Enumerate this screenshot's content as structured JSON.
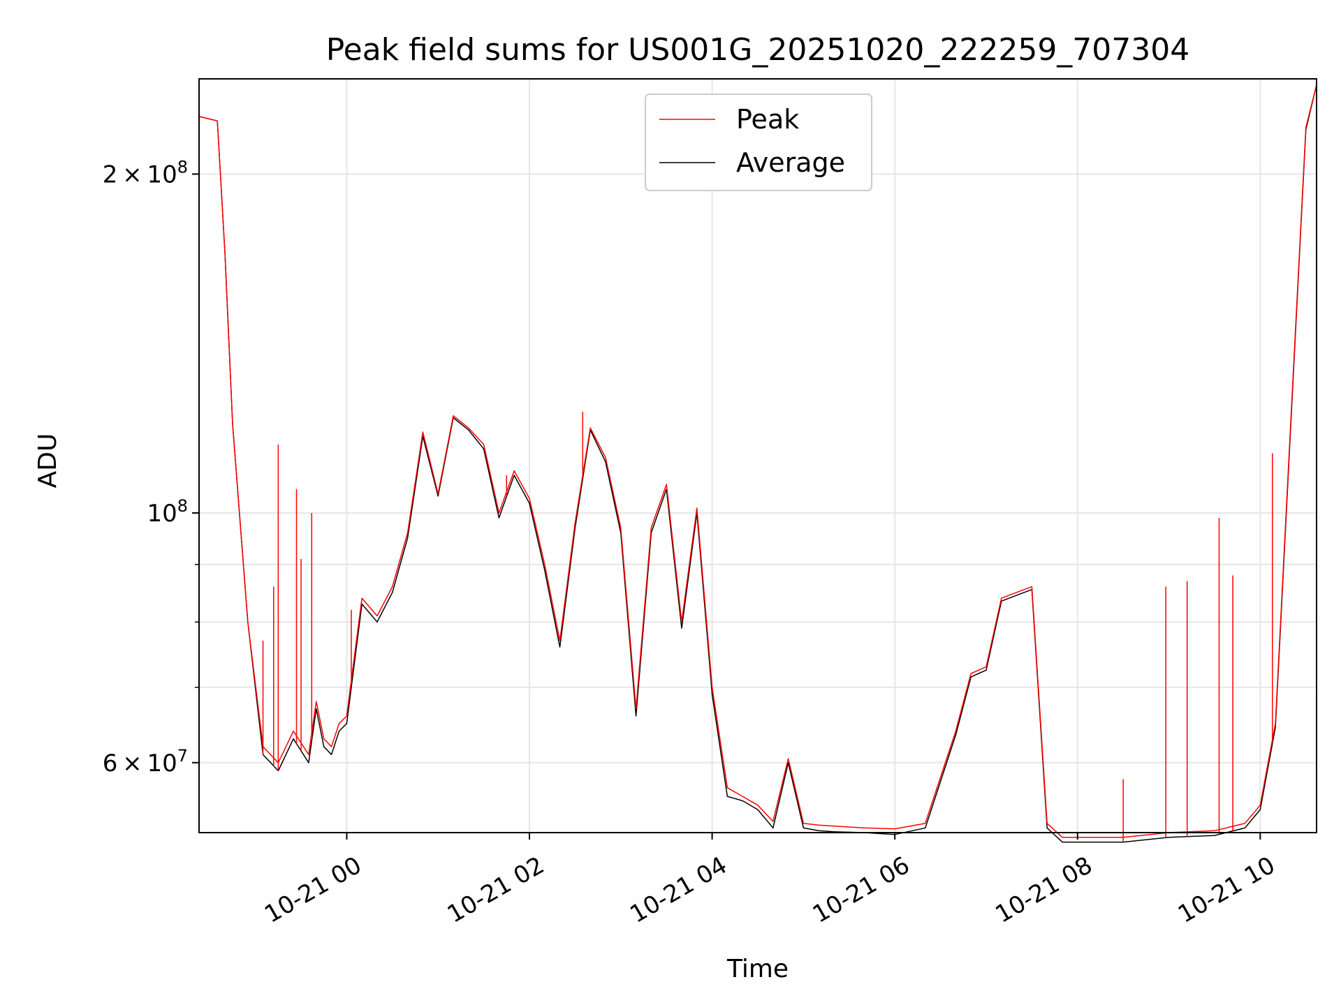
{
  "chart_data": {
    "type": "line",
    "title": "Peak field sums for US001G_20251020_222259_707304",
    "xlabel": "Time",
    "ylabel": "ADU",
    "yscale": "log",
    "xlim": [
      "2025-10-20 22:23",
      "2025-10-21 10:37"
    ],
    "ylim": [
      52000000,
      243000000
    ],
    "grid": true,
    "legend_position": "upper center",
    "x_ticks": [
      "2025-10-21 00:00",
      "2025-10-21 02:00",
      "2025-10-21 04:00",
      "2025-10-21 06:00",
      "2025-10-21 08:00",
      "2025-10-21 10:00"
    ],
    "x_tick_labels": [
      "10-21 00",
      "10-21 02",
      "10-21 04",
      "10-21 06",
      "10-21 08",
      "10-21 10"
    ],
    "y_ticks": [
      {
        "value": 60000000,
        "base": "6",
        "exp": "7",
        "kind": "times"
      },
      {
        "value": 100000000,
        "base": "10",
        "exp": "8",
        "kind": "power"
      },
      {
        "value": 200000000,
        "base": "2",
        "exp": "8",
        "kind": "times"
      }
    ],
    "y_minor_ticks": [
      70000000,
      80000000,
      90000000
    ],
    "x": [
      "2025-10-20 22:23",
      "2025-10-20 22:35",
      "2025-10-20 22:40",
      "2025-10-20 22:45",
      "2025-10-20 22:55",
      "2025-10-20 23:05",
      "2025-10-20 23:15",
      "2025-10-20 23:25",
      "2025-10-20 23:35",
      "2025-10-20 23:40",
      "2025-10-20 23:45",
      "2025-10-20 23:50",
      "2025-10-20 23:55",
      "2025-10-21 00:00",
      "2025-10-21 00:10",
      "2025-10-21 00:20",
      "2025-10-21 00:30",
      "2025-10-21 00:40",
      "2025-10-21 00:50",
      "2025-10-21 01:00",
      "2025-10-21 01:10",
      "2025-10-21 01:20",
      "2025-10-21 01:30",
      "2025-10-21 01:40",
      "2025-10-21 01:50",
      "2025-10-21 02:00",
      "2025-10-21 02:10",
      "2025-10-21 02:20",
      "2025-10-21 02:30",
      "2025-10-21 02:40",
      "2025-10-21 02:50",
      "2025-10-21 03:00",
      "2025-10-21 03:10",
      "2025-10-21 03:20",
      "2025-10-21 03:30",
      "2025-10-21 03:40",
      "2025-10-21 03:50",
      "2025-10-21 04:00",
      "2025-10-21 04:10",
      "2025-10-21 04:20",
      "2025-10-21 04:30",
      "2025-10-21 04:40",
      "2025-10-21 04:50",
      "2025-10-21 05:00",
      "2025-10-21 05:10",
      "2025-10-21 05:20",
      "2025-10-21 05:40",
      "2025-10-21 06:00",
      "2025-10-21 06:20",
      "2025-10-21 06:40",
      "2025-10-21 06:50",
      "2025-10-21 07:00",
      "2025-10-21 07:10",
      "2025-10-21 07:20",
      "2025-10-21 07:30",
      "2025-10-21 07:40",
      "2025-10-21 07:50",
      "2025-10-21 08:00",
      "2025-10-21 08:30",
      "2025-10-21 09:00",
      "2025-10-21 09:30",
      "2025-10-21 09:50",
      "2025-10-21 10:00",
      "2025-10-21 10:10",
      "2025-10-21 10:20",
      "2025-10-21 10:30",
      "2025-10-21 10:37"
    ],
    "series": [
      {
        "name": "Peak",
        "color": "#ff0000",
        "values": [
          225000000,
          223000000,
          170000000,
          120000000,
          80000000,
          62000000,
          60000000,
          64000000,
          61000000,
          68000000,
          63000000,
          62000000,
          65000000,
          66000000,
          84000000,
          81000000,
          86000000,
          96000000,
          118000000,
          104000000,
          122000000,
          119000000,
          115000000,
          100000000,
          109000000,
          103000000,
          90000000,
          77000000,
          98000000,
          119000000,
          112000000,
          97000000,
          67000000,
          97000000,
          106000000,
          80000000,
          101000000,
          70000000,
          57000000,
          56000000,
          55000000,
          53200000,
          60500000,
          53000000,
          52800000,
          52700000,
          52500000,
          52400000,
          53000000,
          64000000,
          72000000,
          73000000,
          84000000,
          85000000,
          86000000,
          53000000,
          51500000,
          51500000,
          51500000,
          52000000,
          52200000,
          53000000,
          55000000,
          65000000,
          120000000,
          220000000,
          240000000
        ]
      },
      {
        "name": "Average",
        "color": "#000000",
        "values": [
          225000000,
          223000000,
          170000000,
          120000000,
          80000000,
          61000000,
          59000000,
          63000000,
          60000000,
          67000000,
          62000000,
          61000000,
          64000000,
          65000000,
          83000000,
          80000000,
          85000000,
          95000000,
          117000000,
          103500000,
          121500000,
          118500000,
          114000000,
          99000000,
          108000000,
          102000000,
          89000000,
          76000000,
          97000000,
          118500000,
          111000000,
          96000000,
          66000000,
          96000000,
          105000000,
          79000000,
          100000000,
          69000000,
          56000000,
          55500000,
          54500000,
          52500000,
          60000000,
          52500000,
          52200000,
          52100000,
          52000000,
          51800000,
          52500000,
          63500000,
          71500000,
          72500000,
          83500000,
          84500000,
          85500000,
          52500000,
          51000000,
          51000000,
          51000000,
          51500000,
          51700000,
          52500000,
          54500000,
          64500000,
          119000000,
          219000000,
          240000000
        ]
      }
    ],
    "peak_spikes": [
      {
        "x": "2025-10-20 23:05",
        "value": 77000000
      },
      {
        "x": "2025-10-20 23:12",
        "value": 86000000
      },
      {
        "x": "2025-10-20 23:15",
        "value": 115000000
      },
      {
        "x": "2025-10-20 23:27",
        "value": 105000000
      },
      {
        "x": "2025-10-20 23:30",
        "value": 91000000
      },
      {
        "x": "2025-10-20 23:37",
        "value": 100000000
      },
      {
        "x": "2025-10-21 00:03",
        "value": 82000000
      },
      {
        "x": "2025-10-21 01:45",
        "value": 108000000
      },
      {
        "x": "2025-10-21 02:35",
        "value": 123000000
      },
      {
        "x": "2025-10-21 08:30",
        "value": 58000000
      },
      {
        "x": "2025-10-21 08:58",
        "value": 86000000
      },
      {
        "x": "2025-10-21 09:12",
        "value": 87000000
      },
      {
        "x": "2025-10-21 09:33",
        "value": 99000000
      },
      {
        "x": "2025-10-21 09:42",
        "value": 88000000
      },
      {
        "x": "2025-10-21 10:08",
        "value": 113000000
      }
    ]
  }
}
